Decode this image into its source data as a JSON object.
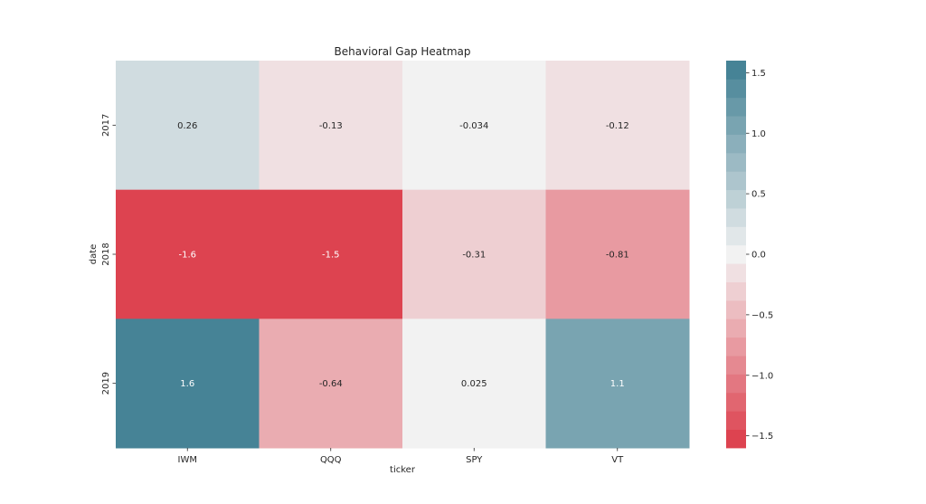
{
  "chart_data": {
    "type": "heatmap",
    "title": "Behavioral Gap Heatmap",
    "xlabel": "ticker",
    "ylabel": "date",
    "x": [
      "IWM",
      "QQQ",
      "SPY",
      "VT"
    ],
    "y": [
      "2017",
      "2018",
      "2019"
    ],
    "values": [
      [
        0.26,
        -0.13,
        -0.034,
        -0.12
      ],
      [
        -1.6,
        -1.5,
        -0.31,
        -0.81
      ],
      [
        1.6,
        -0.64,
        0.025,
        1.1
      ]
    ],
    "value_labels": [
      [
        "0.26",
        "-0.13",
        "-0.034",
        "-0.12"
      ],
      [
        "-1.6",
        "-1.5",
        "-0.31",
        "-0.81"
      ],
      [
        "1.6",
        "-0.64",
        "0.025",
        "1.1"
      ]
    ],
    "colorbar": {
      "range": [
        -1.6,
        1.6
      ],
      "ticks": [
        1.5,
        1.0,
        0.5,
        0.0,
        -0.5,
        -1.0,
        -1.5
      ],
      "tick_labels": [
        "1.5",
        "1.0",
        "0.5",
        "0.0",
        "−0.5",
        "−1.0",
        "−1.5"
      ],
      "low_color": "#dc3a48",
      "mid_color": "#f2f2f2",
      "high_color": "#3d7d91"
    }
  }
}
